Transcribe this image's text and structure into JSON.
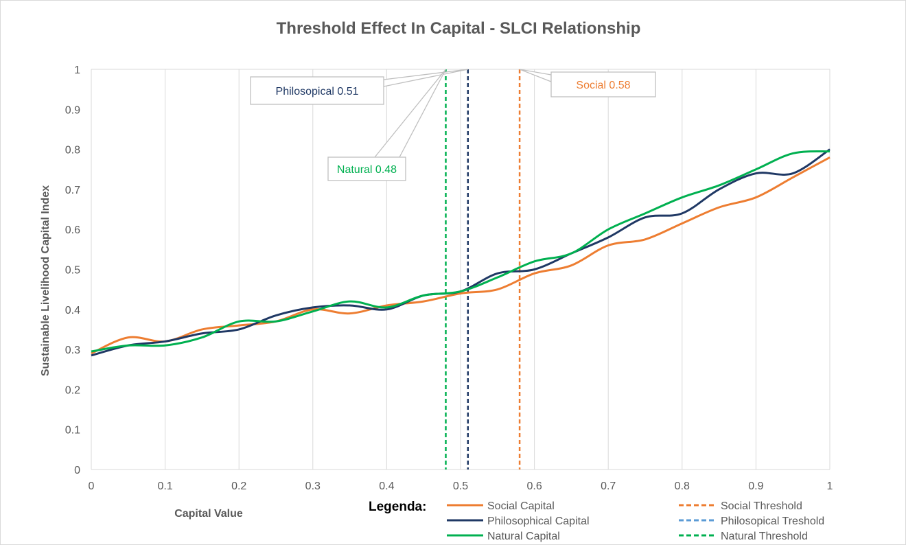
{
  "chart_data": {
    "type": "line",
    "title": "Threshold Effect In Capital - SLCI Relationship",
    "xlabel": "Capital Value",
    "ylabel": "Sustainable Livelihood Capital Index",
    "xlim": [
      0,
      1
    ],
    "ylim": [
      0,
      1
    ],
    "x_ticks": [
      "0",
      "0.1",
      "0.2",
      "0.3",
      "0.4",
      "0.5",
      "0.6",
      "0.7",
      "0.8",
      "0.9",
      "1"
    ],
    "y_ticks": [
      "0",
      "0.1",
      "0.2",
      "0.3",
      "0.4",
      "0.5",
      "0.6",
      "0.7",
      "0.8",
      "0.9",
      "1"
    ],
    "grid": "vertical",
    "legend_title": "Legenda:",
    "legend_position": "bottom",
    "x": [
      0,
      0.05,
      0.1,
      0.15,
      0.2,
      0.25,
      0.3,
      0.35,
      0.4,
      0.45,
      0.5,
      0.55,
      0.6,
      0.65,
      0.7,
      0.75,
      0.8,
      0.85,
      0.9,
      0.95,
      1
    ],
    "series": [
      {
        "name": "Social Capital",
        "color": "#ED7D31",
        "values": [
          0.29,
          0.33,
          0.32,
          0.35,
          0.36,
          0.37,
          0.4,
          0.39,
          0.41,
          0.42,
          0.44,
          0.45,
          0.49,
          0.51,
          0.56,
          0.575,
          0.615,
          0.655,
          0.68,
          0.73,
          0.78
        ]
      },
      {
        "name": "Philosophical Capital",
        "color": "#1F3864",
        "values": [
          0.285,
          0.31,
          0.32,
          0.34,
          0.35,
          0.385,
          0.405,
          0.41,
          0.4,
          0.435,
          0.445,
          0.49,
          0.5,
          0.54,
          0.58,
          0.63,
          0.64,
          0.7,
          0.74,
          0.74,
          0.8
        ]
      },
      {
        "name": "Natural Capital",
        "color": "#00B050",
        "values": [
          0.295,
          0.31,
          0.31,
          0.33,
          0.37,
          0.37,
          0.395,
          0.42,
          0.405,
          0.435,
          0.445,
          0.48,
          0.52,
          0.54,
          0.6,
          0.64,
          0.68,
          0.71,
          0.75,
          0.79,
          0.795
        ]
      }
    ],
    "thresholds": [
      {
        "name": "Social Threshold",
        "x": 0.58,
        "color": "#ED7D31",
        "label": "Social 0.58"
      },
      {
        "name": "Philosopical Treshold",
        "x": 0.51,
        "color": "#1F3864",
        "legend_color": "#5B9BD5",
        "label": "Philosopical 0.51"
      },
      {
        "name": "Natural Threshold",
        "x": 0.48,
        "color": "#00B050",
        "label": "Natural 0.48"
      }
    ]
  }
}
